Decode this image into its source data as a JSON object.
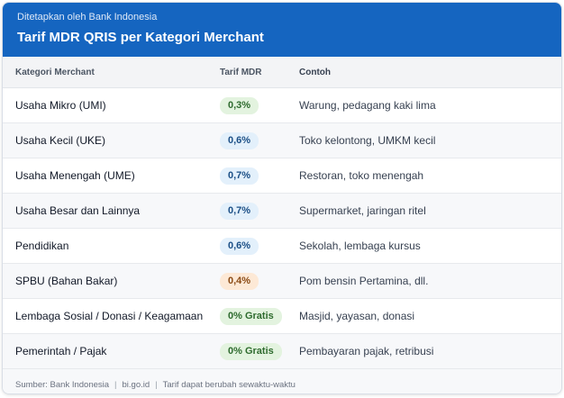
{
  "header": {
    "subtitle": "Ditetapkan oleh Bank Indonesia",
    "title": "Tarif MDR QRIS per Kategori Merchant"
  },
  "columns": {
    "category": "Kategori Merchant",
    "rate": "Tarif MDR",
    "example": "Contoh"
  },
  "rows": [
    {
      "category": "Usaha Mikro (UMI)",
      "rate": "0,3%",
      "rate_color": "green",
      "example": "Warung, pedagang kaki lima"
    },
    {
      "category": "Usaha Kecil (UKE)",
      "rate": "0,6%",
      "rate_color": "blue",
      "example": "Toko kelontong, UMKM kecil"
    },
    {
      "category": "Usaha Menengah (UME)",
      "rate": "0,7%",
      "rate_color": "blue",
      "example": "Restoran, toko menengah"
    },
    {
      "category": "Usaha Besar dan Lainnya",
      "rate": "0,7%",
      "rate_color": "blue",
      "example": "Supermarket, jaringan ritel"
    },
    {
      "category": "Pendidikan",
      "rate": "0,6%",
      "rate_color": "blue",
      "example": "Sekolah, lembaga kursus"
    },
    {
      "category": "SPBU (Bahan Bakar)",
      "rate": "0,4%",
      "rate_color": "orange",
      "example": "Pom bensin Pertamina, dll."
    },
    {
      "category": "Lembaga Sosial / Donasi / Keagamaan",
      "rate": "0% Gratis",
      "rate_color": "green",
      "example": "Masjid, yayasan, donasi"
    },
    {
      "category": "Pemerintah / Pajak",
      "rate": "0% Gratis",
      "rate_color": "green",
      "example": "Pembayaran pajak, retribusi"
    }
  ],
  "footer": {
    "source": "Sumber: Bank Indonesia",
    "site": "bi.go.id",
    "note": "Tarif dapat berubah sewaktu-waktu",
    "separator": "|"
  },
  "colors": {
    "header_bg": "#1565c0",
    "green": "#2e6b2e",
    "blue": "#1b4f86",
    "orange": "#8a4a14"
  }
}
